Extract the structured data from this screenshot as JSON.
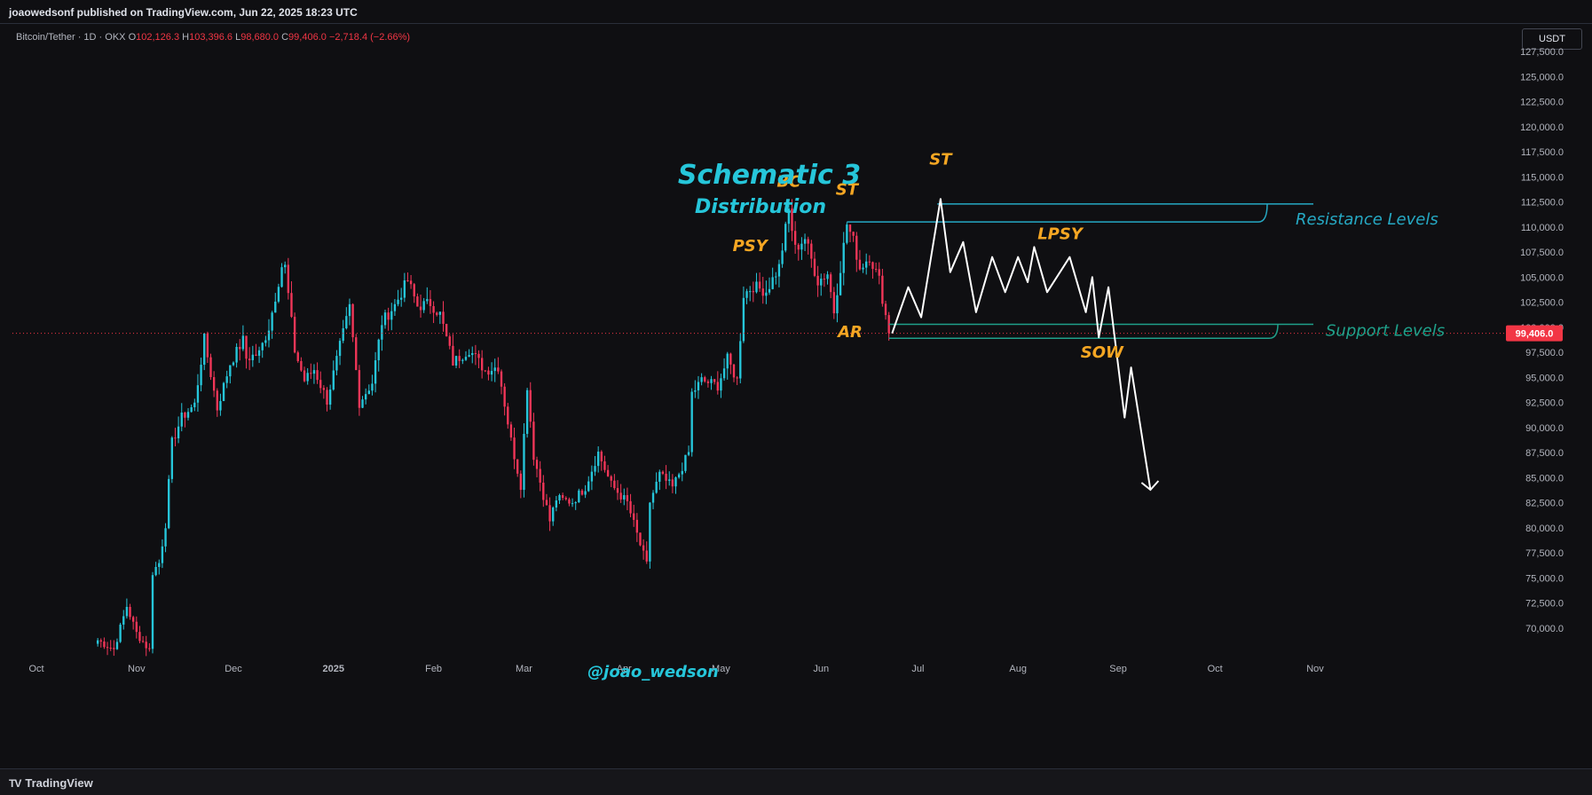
{
  "header": {
    "published": "joaowedsonf published on TradingView.com, Jun 22, 2025 18:23 UTC"
  },
  "symbol_line": {
    "name": "Bitcoin/Tether · 1D · OKX",
    "o_label": "O",
    "o": "102,126.3",
    "h_label": "H",
    "h": "103,396.6",
    "l_label": "L",
    "l": "98,680.0",
    "c_label": "C",
    "c": "99,406.0",
    "change": "−2,718.4 (−2.66%)"
  },
  "currency_button": "USDT",
  "footer": {
    "logo_mark": "TV",
    "logo_text": "TradingView"
  },
  "colors": {
    "up": "#26c6da",
    "down": "#f23658",
    "background": "#0f0f12",
    "annotation_orange": "#f5a623",
    "resistance": "#26a9c4",
    "support": "#1fa08a",
    "path": "#ffffff",
    "price_line": "#f23645"
  },
  "chart_data": {
    "type": "candlestick",
    "title": "Schematic 3",
    "subtitle": "Distribution",
    "watermark": "@joao_wedson",
    "ylim": [
      68000,
      130000
    ],
    "y_ticks": [
      70000,
      72500,
      75000,
      77500,
      80000,
      82500,
      85000,
      87500,
      90000,
      92500,
      95000,
      97500,
      100000,
      102500,
      105000,
      107500,
      110000,
      112500,
      115000,
      117500,
      120000,
      122500,
      125000,
      127500
    ],
    "y_tick_labels": [
      "70,000.0",
      "72,500.0",
      "75,000.0",
      "77,500.0",
      "80,000.0",
      "82,500.0",
      "85,000.0",
      "87,500.0",
      "90,000.0",
      "92,500.0",
      "95,000.0",
      "97,500.0",
      "100,000.0",
      "102,500.0",
      "105,000.0",
      "107,500.0",
      "110,000.0",
      "112,500.0",
      "115,000.0",
      "117,500.0",
      "120,000.0",
      "122,500.0",
      "125,000.0",
      "127,500.0"
    ],
    "x_ticks": [
      {
        "label": "Oct",
        "date": "2024-10-01"
      },
      {
        "label": "Nov",
        "date": "2024-11-01"
      },
      {
        "label": "Dec",
        "date": "2024-12-01"
      },
      {
        "label": "2025",
        "date": "2025-01-01"
      },
      {
        "label": "Feb",
        "date": "2025-02-01"
      },
      {
        "label": "Mar",
        "date": "2025-03-01"
      },
      {
        "label": "Apr",
        "date": "2025-04-01"
      },
      {
        "label": "May",
        "date": "2025-05-01"
      },
      {
        "label": "Jun",
        "date": "2025-06-01"
      },
      {
        "label": "Jul",
        "date": "2025-07-01"
      },
      {
        "label": "Aug",
        "date": "2025-08-01"
      },
      {
        "label": "Sep",
        "date": "2025-09-01"
      },
      {
        "label": "Oct",
        "date": "2025-10-01"
      },
      {
        "label": "Nov",
        "date": "2025-11-01"
      }
    ],
    "xlim": [
      "2024-09-28",
      "2025-11-12"
    ],
    "last_price": {
      "value": 99406,
      "label": "99,406.0"
    },
    "closes": [
      {
        "date": "2024-10-20",
        "close": 68800
      },
      {
        "date": "2024-10-25",
        "close": 67900
      },
      {
        "date": "2024-10-29",
        "close": 72200
      },
      {
        "date": "2024-11-01",
        "close": 69500
      },
      {
        "date": "2024-11-05",
        "close": 67800
      },
      {
        "date": "2024-11-06",
        "close": 75600
      },
      {
        "date": "2024-11-08",
        "close": 76500
      },
      {
        "date": "2024-11-10",
        "close": 80400
      },
      {
        "date": "2024-11-12",
        "close": 88500
      },
      {
        "date": "2024-11-15",
        "close": 91000
      },
      {
        "date": "2024-11-19",
        "close": 92300
      },
      {
        "date": "2024-11-22",
        "close": 98800
      },
      {
        "date": "2024-11-26",
        "close": 91900
      },
      {
        "date": "2024-11-30",
        "close": 96400
      },
      {
        "date": "2024-12-04",
        "close": 98700
      },
      {
        "date": "2024-12-05",
        "close": 96900
      },
      {
        "date": "2024-12-09",
        "close": 97400
      },
      {
        "date": "2024-12-12",
        "close": 100000
      },
      {
        "date": "2024-12-16",
        "close": 106100
      },
      {
        "date": "2024-12-17",
        "close": 106000
      },
      {
        "date": "2024-12-20",
        "close": 97700
      },
      {
        "date": "2024-12-23",
        "close": 94700
      },
      {
        "date": "2024-12-26",
        "close": 95800
      },
      {
        "date": "2024-12-30",
        "close": 92700
      },
      {
        "date": "2025-01-03",
        "close": 98100
      },
      {
        "date": "2025-01-06",
        "close": 102000
      },
      {
        "date": "2025-01-09",
        "close": 92500
      },
      {
        "date": "2025-01-13",
        "close": 94500
      },
      {
        "date": "2025-01-16",
        "close": 100500
      },
      {
        "date": "2025-01-20",
        "close": 102200
      },
      {
        "date": "2025-01-24",
        "close": 104700
      },
      {
        "date": "2025-01-27",
        "close": 102100
      },
      {
        "date": "2025-01-31",
        "close": 102400
      },
      {
        "date": "2025-02-03",
        "close": 101300
      },
      {
        "date": "2025-02-07",
        "close": 96500
      },
      {
        "date": "2025-02-12",
        "close": 97800
      },
      {
        "date": "2025-02-17",
        "close": 95700
      },
      {
        "date": "2025-02-21",
        "close": 96100
      },
      {
        "date": "2025-02-25",
        "close": 88700
      },
      {
        "date": "2025-02-28",
        "close": 84300
      },
      {
        "date": "2025-03-02",
        "close": 94200
      },
      {
        "date": "2025-03-04",
        "close": 87200
      },
      {
        "date": "2025-03-09",
        "close": 80700
      },
      {
        "date": "2025-03-11",
        "close": 82900
      },
      {
        "date": "2025-03-16",
        "close": 82600
      },
      {
        "date": "2025-03-20",
        "close": 84100
      },
      {
        "date": "2025-03-24",
        "close": 87500
      },
      {
        "date": "2025-03-28",
        "close": 84300
      },
      {
        "date": "2025-04-02",
        "close": 82500
      },
      {
        "date": "2025-04-06",
        "close": 78300
      },
      {
        "date": "2025-04-08",
        "close": 76300
      },
      {
        "date": "2025-04-09",
        "close": 82600
      },
      {
        "date": "2025-04-12",
        "close": 85300
      },
      {
        "date": "2025-04-16",
        "close": 84000
      },
      {
        "date": "2025-04-21",
        "close": 87500
      },
      {
        "date": "2025-04-22",
        "close": 93400
      },
      {
        "date": "2025-04-25",
        "close": 94700
      },
      {
        "date": "2025-04-30",
        "close": 94200
      },
      {
        "date": "2025-05-03",
        "close": 96800
      },
      {
        "date": "2025-05-06",
        "close": 94700
      },
      {
        "date": "2025-05-08",
        "close": 103300
      },
      {
        "date": "2025-05-11",
        "close": 104100
      },
      {
        "date": "2025-05-15",
        "close": 103600
      },
      {
        "date": "2025-05-19",
        "close": 106000
      },
      {
        "date": "2025-05-22",
        "close": 111700
      },
      {
        "date": "2025-05-24",
        "close": 107800
      },
      {
        "date": "2025-05-27",
        "close": 108900
      },
      {
        "date": "2025-05-31",
        "close": 104600
      },
      {
        "date": "2025-06-03",
        "close": 105400
      },
      {
        "date": "2025-06-05",
        "close": 101600
      },
      {
        "date": "2025-06-09",
        "close": 110300
      },
      {
        "date": "2025-06-11",
        "close": 108600
      },
      {
        "date": "2025-06-13",
        "close": 105900
      },
      {
        "date": "2025-06-16",
        "close": 107100
      },
      {
        "date": "2025-06-19",
        "close": 104700
      },
      {
        "date": "2025-06-22",
        "close": 99406
      }
    ],
    "resistance_levels": [
      110500,
      112300
    ],
    "support_levels": [
      98900,
      100300
    ],
    "projection_path": [
      {
        "date": "2025-06-23",
        "value": 99400
      },
      {
        "date": "2025-06-28",
        "value": 104000
      },
      {
        "date": "2025-07-02",
        "value": 101000
      },
      {
        "date": "2025-07-08",
        "value": 112800
      },
      {
        "date": "2025-07-11",
        "value": 105500
      },
      {
        "date": "2025-07-15",
        "value": 108500
      },
      {
        "date": "2025-07-19",
        "value": 101500
      },
      {
        "date": "2025-07-24",
        "value": 107000
      },
      {
        "date": "2025-07-28",
        "value": 103500
      },
      {
        "date": "2025-08-01",
        "value": 107000
      },
      {
        "date": "2025-08-04",
        "value": 104500
      },
      {
        "date": "2025-08-06",
        "value": 108000
      },
      {
        "date": "2025-08-10",
        "value": 103500
      },
      {
        "date": "2025-08-17",
        "value": 107000
      },
      {
        "date": "2025-08-22",
        "value": 101500
      },
      {
        "date": "2025-08-24",
        "value": 105000
      },
      {
        "date": "2025-08-26",
        "value": 99000
      },
      {
        "date": "2025-08-29",
        "value": 104000
      },
      {
        "date": "2025-09-03",
        "value": 91000
      },
      {
        "date": "2025-09-05",
        "value": 96000
      },
      {
        "date": "2025-09-11",
        "value": 83800
      }
    ],
    "annotations": [
      {
        "label": "BC",
        "date": "2025-05-22",
        "value": 114000
      },
      {
        "label": "ST",
        "date": "2025-06-09",
        "value": 113200
      },
      {
        "label": "ST",
        "date": "2025-07-08",
        "value": 116200
      },
      {
        "label": "PSY",
        "date": "2025-05-10",
        "value": 107600
      },
      {
        "label": "LPSY",
        "date": "2025-08-14",
        "value": 108800
      },
      {
        "label": "AR",
        "date": "2025-06-10",
        "value": 99000
      },
      {
        "label": "SOW",
        "date": "2025-08-27",
        "value": 97000
      }
    ],
    "level_labels": {
      "resistance": "Resistance Levels",
      "support": "Support Levels"
    }
  }
}
